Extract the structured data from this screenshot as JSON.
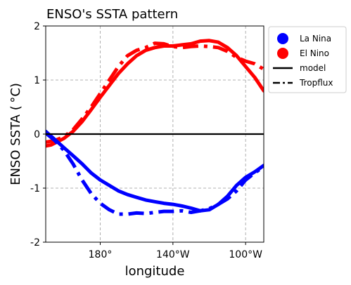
{
  "chart_data": {
    "type": "line",
    "title": "ENSO's SSTA pattern",
    "xlabel": "longitude",
    "ylabel": "ENSO SSTA ($^\\circ$C)",
    "ylabel_display": "ENSO SSTA ( °C)",
    "xlim": [
      150,
      270
    ],
    "ylim": [
      -2,
      2
    ],
    "grid": true,
    "legend_position": "outside-right-top",
    "xticks": [
      {
        "value": 180,
        "label": "180°"
      },
      {
        "value": 220,
        "label": "140°W"
      },
      {
        "value": 260,
        "label": "100°W"
      }
    ],
    "yticks": [
      {
        "value": 2,
        "label": "2"
      },
      {
        "value": 1,
        "label": "1"
      },
      {
        "value": 0,
        "label": "0"
      },
      {
        "value": -1,
        "label": "-1"
      },
      {
        "value": -2,
        "label": "-2"
      }
    ],
    "series": [
      {
        "name": "El Nino",
        "color": "#ff0000",
        "style": "solid",
        "x": [
          150,
          153,
          156,
          160,
          165,
          170,
          175,
          180,
          185,
          190,
          195,
          200,
          205,
          210,
          215,
          220,
          225,
          230,
          235,
          240,
          245,
          250,
          255,
          260,
          265,
          268,
          270
        ],
        "y": [
          -0.22,
          -0.2,
          -0.15,
          -0.08,
          0.05,
          0.23,
          0.45,
          0.68,
          0.9,
          1.12,
          1.3,
          1.45,
          1.55,
          1.6,
          1.63,
          1.63,
          1.65,
          1.67,
          1.72,
          1.73,
          1.7,
          1.6,
          1.45,
          1.25,
          1.05,
          0.9,
          0.8
        ]
      },
      {
        "name": "El Nino",
        "color": "#ff0000",
        "style": "dashdot",
        "x": [
          150,
          155,
          160,
          165,
          170,
          175,
          180,
          185,
          190,
          195,
          200,
          205,
          210,
          215,
          220,
          225,
          230,
          235,
          240,
          245,
          250,
          255,
          260,
          265,
          270
        ],
        "y": [
          -0.15,
          -0.12,
          -0.05,
          0.08,
          0.28,
          0.5,
          0.75,
          1.0,
          1.25,
          1.45,
          1.55,
          1.6,
          1.68,
          1.67,
          1.62,
          1.6,
          1.62,
          1.63,
          1.62,
          1.6,
          1.53,
          1.42,
          1.35,
          1.3,
          1.2
        ]
      },
      {
        "name": "La Nina",
        "color": "#0000ff",
        "style": "solid",
        "x": [
          150,
          155,
          160,
          165,
          170,
          175,
          180,
          185,
          190,
          195,
          200,
          205,
          210,
          215,
          220,
          225,
          230,
          235,
          240,
          245,
          250,
          255,
          260,
          265,
          270
        ],
        "y": [
          0.05,
          -0.1,
          -0.25,
          -0.4,
          -0.55,
          -0.72,
          -0.85,
          -0.95,
          -1.05,
          -1.12,
          -1.17,
          -1.22,
          -1.25,
          -1.28,
          -1.3,
          -1.33,
          -1.37,
          -1.42,
          -1.4,
          -1.3,
          -1.15,
          -0.95,
          -0.8,
          -0.7,
          -0.58
        ]
      },
      {
        "name": "La Nina",
        "color": "#0000ff",
        "style": "dashdot",
        "x": [
          150,
          155,
          160,
          165,
          170,
          175,
          180,
          185,
          190,
          195,
          200,
          205,
          210,
          215,
          220,
          225,
          230,
          235,
          240,
          245,
          250,
          255,
          260,
          265,
          270
        ],
        "y": [
          0.02,
          -0.12,
          -0.3,
          -0.55,
          -0.85,
          -1.1,
          -1.28,
          -1.4,
          -1.48,
          -1.48,
          -1.46,
          -1.47,
          -1.45,
          -1.43,
          -1.43,
          -1.42,
          -1.45,
          -1.42,
          -1.38,
          -1.3,
          -1.2,
          -1.05,
          -0.85,
          -0.72,
          -0.6
        ]
      },
      {
        "name": "model",
        "color": "#000000",
        "style": "solid",
        "x": [
          150,
          270
        ],
        "y": [
          0,
          0
        ]
      }
    ],
    "legend": [
      {
        "label": "La Nina",
        "marker": "circle",
        "color": "#0000ff"
      },
      {
        "label": "El Nino",
        "marker": "circle",
        "color": "#ff0000"
      },
      {
        "label": "model",
        "marker": "line-solid",
        "color": "#000000"
      },
      {
        "label": "Tropflux",
        "marker": "line-dashdot",
        "color": "#000000"
      }
    ]
  }
}
